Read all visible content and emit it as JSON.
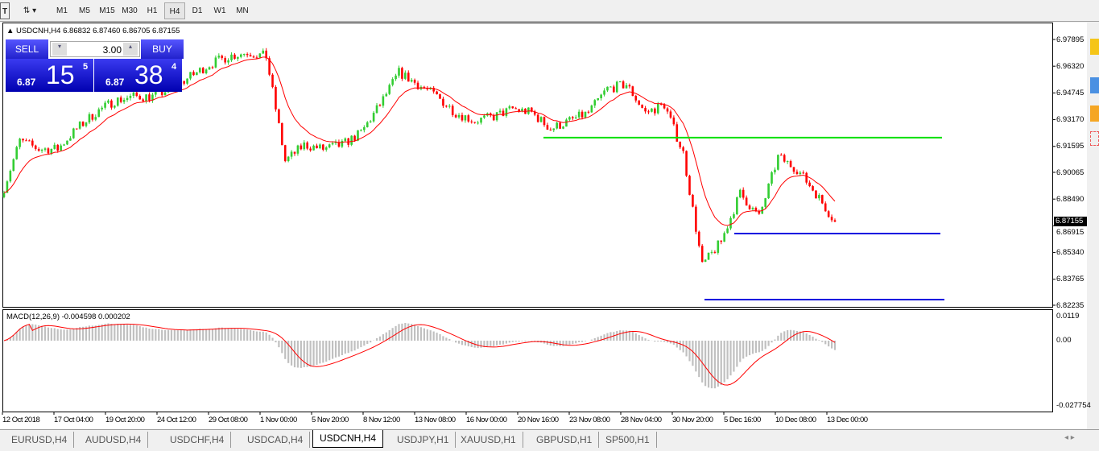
{
  "toolbar": {
    "timeframes": [
      "M1",
      "M5",
      "M15",
      "M30",
      "H1",
      "H4",
      "D1",
      "W1",
      "MN"
    ],
    "active": "H4"
  },
  "chart": {
    "title": "USDCNH,H4  6.86832 6.87460 6.86705 6.87155",
    "trade_panel": {
      "sell_label": "SELL",
      "buy_label": "BUY",
      "lot": "3.00",
      "sell_prefix": "6.87",
      "sell_big": "15",
      "sell_sup": "5",
      "buy_prefix": "6.87",
      "buy_big": "38",
      "buy_sup": "4"
    },
    "current_price": "6.87155",
    "macd_title": "MACD(12,26,9) -0.004598 0.000202"
  },
  "chart_data": {
    "type": "candlestick",
    "symbol": "USDCNH",
    "timeframe": "H4",
    "approx_daily_closes": [
      6.886,
      6.9192,
      6.9144,
      6.9144,
      6.9263,
      6.9358,
      6.9429,
      6.9453,
      6.9453,
      6.95,
      6.9571,
      6.9642,
      6.969,
      6.9714,
      6.969,
      6.9073,
      6.9168,
      6.9144,
      6.9168,
      6.9239,
      6.9405,
      6.9595,
      6.9524,
      6.9453,
      6.9358,
      6.931,
      6.9334,
      6.9381,
      6.9358,
      6.9263,
      6.931,
      6.9358,
      6.95,
      6.9524,
      6.9358,
      6.9405,
      6.912,
      6.8456,
      6.8599,
      6.8883,
      6.8741,
      6.9097,
      6.9026,
      6.8883,
      6.87155
    ],
    "ylim": [
      6.82235,
      6.97895
    ],
    "y_ticks": [
      "6.97895",
      "6.96320",
      "6.94745",
      "6.93170",
      "6.91595",
      "6.90065",
      "6.88490",
      "6.86915",
      "6.85340",
      "6.83765",
      "6.82235"
    ],
    "x_ticks": [
      "12 Oct 2018",
      "17 Oct 04:00",
      "19 Oct 20:00",
      "24 Oct 12:00",
      "29 Oct 08:00",
      "1 Nov 00:00",
      "5 Nov 20:00",
      "8 Nov 12:00",
      "13 Nov 08:00",
      "16 Nov 00:00",
      "20 Nov 16:00",
      "23 Nov 08:00",
      "28 Nov 04:00",
      "30 Nov 20:00",
      "5 Dec 16:00",
      "10 Dec 08:00",
      "13 Dec 00:00"
    ],
    "hlines": [
      {
        "price": 6.9211,
        "color": "#00e000"
      },
      {
        "price": 6.8646,
        "color": "#0000e0"
      },
      {
        "price": 6.8257,
        "color": "#0000e0"
      }
    ],
    "colors": {
      "bull": "#32cd32",
      "bear": "#ff0000",
      "ma": "#ff0000",
      "macd_hist": "#c0c0c0",
      "macd_signal": "#ff0000"
    },
    "macd": {
      "y_ticks": [
        "0.0119",
        "0.00",
        "-0.027754"
      ],
      "ylim": [
        -0.027754,
        0.0119
      ]
    }
  },
  "tabs": [
    "EURUSD,H4",
    "AUDUSD,H4",
    "USDCHF,H4",
    "USDCAD,H4",
    "USDCNH,H4",
    "USDJPY,H1",
    "XAUUSD,H1",
    "GBPUSD,H1",
    "SP500,H1"
  ],
  "active_tab": "USDCNH,H4"
}
